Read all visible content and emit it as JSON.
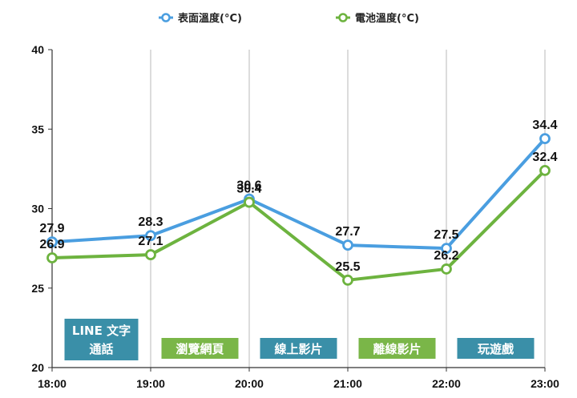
{
  "chart_data": {
    "type": "line",
    "x": [
      "18:00",
      "19:00",
      "20:00",
      "21:00",
      "22:00",
      "23:00"
    ],
    "series": [
      {
        "name": "表面溫度(°C)",
        "color": "#4a9ee0",
        "values": [
          27.9,
          28.3,
          30.6,
          27.7,
          27.5,
          34.4
        ]
      },
      {
        "name": "電池溫度(°C)",
        "color": "#6db33f",
        "values": [
          26.9,
          27.1,
          30.4,
          25.5,
          26.2,
          32.4
        ]
      }
    ],
    "ylim": [
      20,
      40
    ],
    "yticks": [
      20,
      25,
      30,
      35,
      40
    ],
    "grid": "vertical",
    "legend": "top-center",
    "annotations": [
      {
        "lines": [
          "LINE 文字",
          "通話"
        ],
        "color": "#3a8fa8"
      },
      {
        "lines": [
          "瀏覽網頁"
        ],
        "color": "#7ab648"
      },
      {
        "lines": [
          "線上影片"
        ],
        "color": "#3a8fa8"
      },
      {
        "lines": [
          "離線影片"
        ],
        "color": "#7ab648"
      },
      {
        "lines": [
          "玩遊戲"
        ],
        "color": "#3a8fa8"
      }
    ]
  }
}
